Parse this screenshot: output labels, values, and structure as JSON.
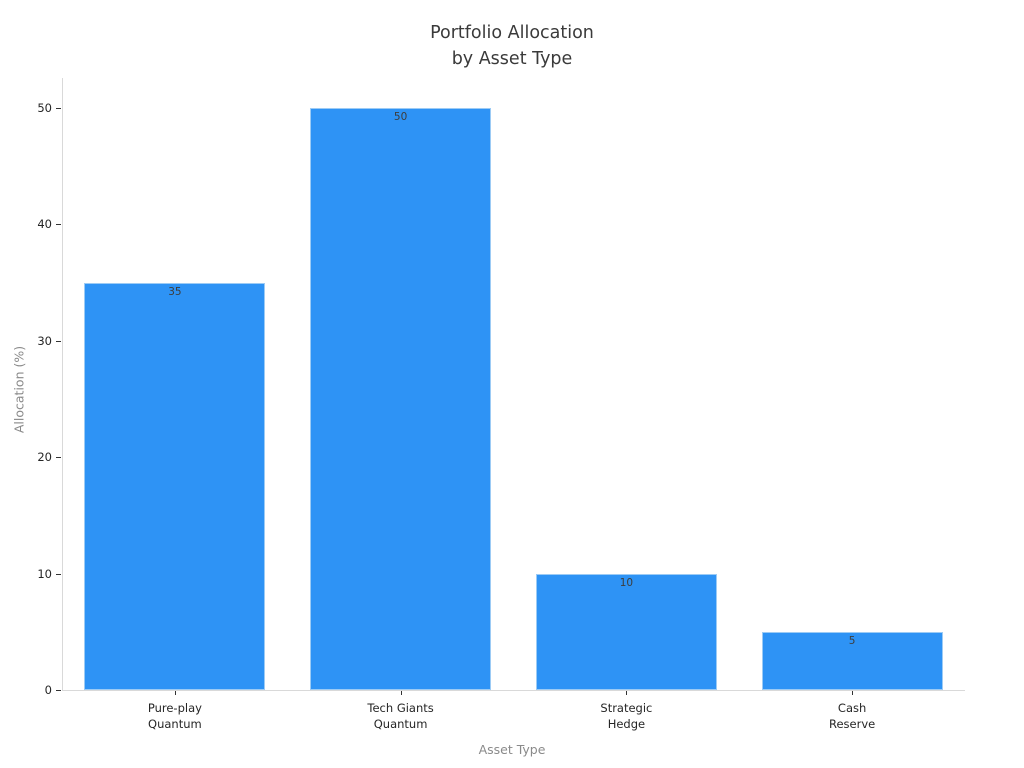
{
  "figure": {
    "title_line1": "Portfolio Allocation",
    "title_line2": "by Asset Type",
    "x_axis_title": "Asset Type",
    "y_axis_title": "Allocation (%)"
  },
  "chart_data": {
    "type": "bar",
    "title": "Portfolio Allocation by Asset Type",
    "xlabel": "Asset Type",
    "ylabel": "Allocation (%)",
    "categories": [
      [
        "Pure-play",
        "Quantum"
      ],
      [
        "Tech Giants",
        "Quantum"
      ],
      [
        "Strategic",
        "Hedge"
      ],
      [
        "Cash",
        "Reserve"
      ]
    ],
    "values": [
      35,
      50,
      10,
      5
    ],
    "bar_value_labels": [
      "35",
      "50",
      "10",
      "5"
    ],
    "yticks": [
      0,
      10,
      20,
      30,
      40,
      50
    ],
    "ylim": [
      0,
      52.5
    ],
    "grid": false,
    "legend_position": "none",
    "bar_color": "#2e93f5",
    "bar_edge_color": "#9ccbf5",
    "spine_color": "#d9d9d9",
    "tick_color": "#333333",
    "tick_label_color": "#262626",
    "title_color": "#3a3a3a",
    "axis_title_color": "#8a8a8a"
  }
}
